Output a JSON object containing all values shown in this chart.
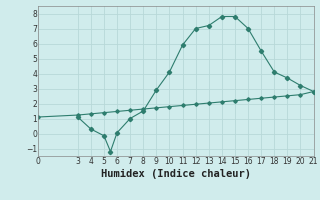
{
  "xlabel": "Humidex (Indice chaleur)",
  "bg_color": "#d0ecec",
  "line_color": "#2e7d6e",
  "grid_color": "#b8d8d8",
  "curve1_x": [
    3,
    4,
    5,
    5.5,
    6,
    7,
    8,
    9,
    10,
    11,
    12,
    13,
    14,
    15,
    16,
    17,
    18,
    19,
    20,
    21
  ],
  "curve1_y": [
    1.1,
    0.3,
    -0.15,
    -1.2,
    0.05,
    1.0,
    1.5,
    2.9,
    4.1,
    5.9,
    7.0,
    7.2,
    7.8,
    7.8,
    7.0,
    5.5,
    4.1,
    3.7,
    3.2,
    2.8
  ],
  "curve2_x": [
    0,
    3,
    4,
    5,
    6,
    7,
    8,
    9,
    10,
    11,
    12,
    13,
    14,
    15,
    16,
    17,
    18,
    19,
    20,
    21
  ],
  "curve2_y": [
    1.1,
    1.23,
    1.31,
    1.39,
    1.47,
    1.55,
    1.63,
    1.71,
    1.79,
    1.87,
    1.95,
    2.03,
    2.11,
    2.19,
    2.27,
    2.35,
    2.43,
    2.51,
    2.59,
    2.8
  ],
  "xlim": [
    0,
    21
  ],
  "ylim": [
    -1.5,
    8.5
  ],
  "xticks": [
    0,
    3,
    4,
    5,
    6,
    7,
    8,
    9,
    10,
    11,
    12,
    13,
    14,
    15,
    16,
    17,
    18,
    19,
    20,
    21
  ],
  "yticks": [
    -1,
    0,
    1,
    2,
    3,
    4,
    5,
    6,
    7,
    8
  ],
  "tick_fontsize": 5.5,
  "xlabel_fontsize": 7.5
}
